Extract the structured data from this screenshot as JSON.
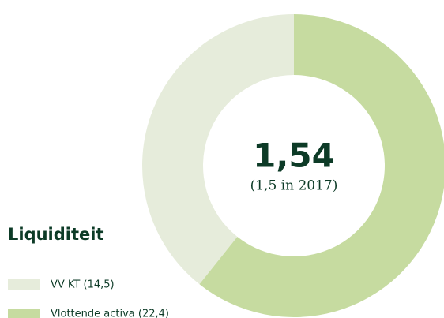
{
  "chart_data": {
    "type": "donut",
    "title": "Liquiditeit",
    "center_value": "1,54",
    "center_note": "(1,5 in 2017)",
    "categories": [
      "VV KT (14,5)",
      "Vlottende activa (22,4)"
    ],
    "values": [
      14.5,
      22.4
    ],
    "colors": [
      "#e6ecdb",
      "#c6dba0"
    ],
    "legend": "bottom-left"
  }
}
